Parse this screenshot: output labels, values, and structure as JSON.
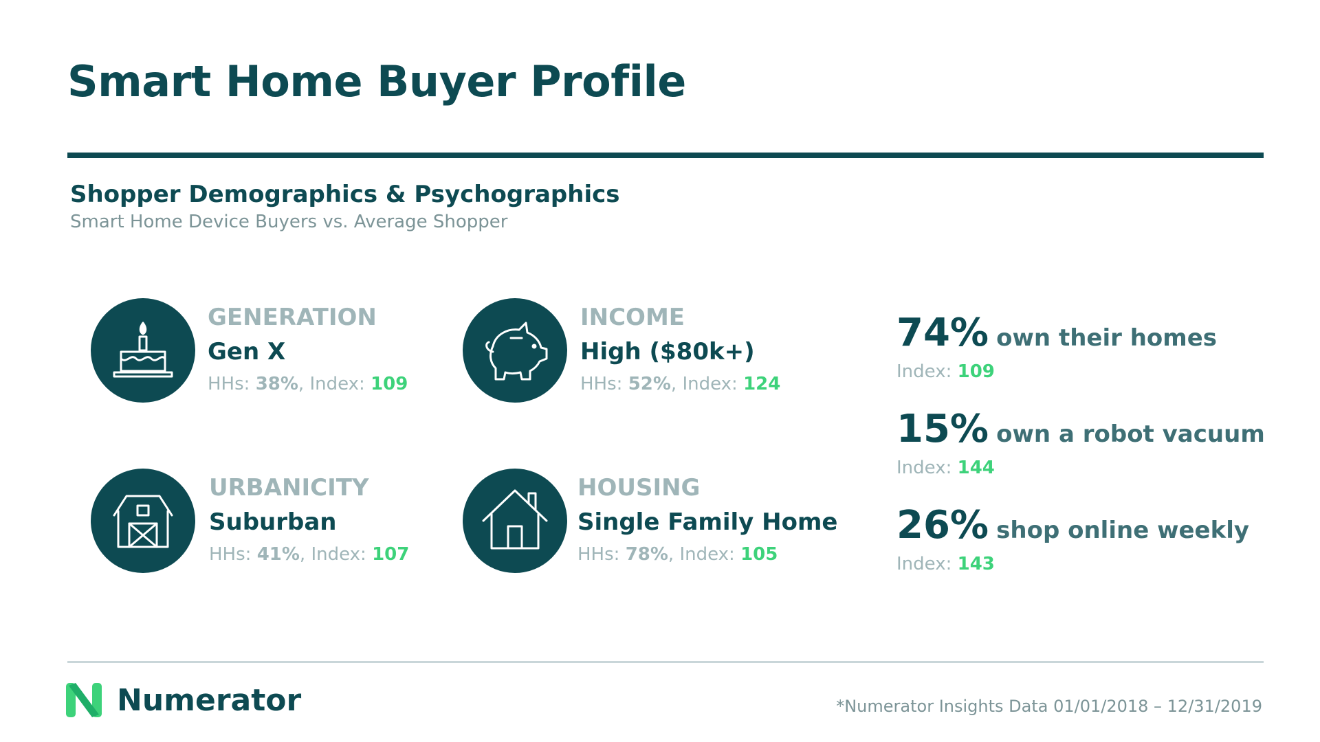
{
  "title": "Smart Home Buyer Profile",
  "section": {
    "title": "Shopper Demographics & Psychographics",
    "subtitle": "Smart Home Device Buyers vs. Average Shopper"
  },
  "cards": [
    {
      "label": "GENERATION",
      "value": "Gen X",
      "hhs_label": "HHs:",
      "hhs": "38%",
      "index_label": "Index:",
      "index": "109",
      "icon": "birthday-cake-icon"
    },
    {
      "label": "INCOME",
      "value": "High ($80k+)",
      "hhs_label": "HHs:",
      "hhs": "52%",
      "index_label": "Index:",
      "index": "124",
      "icon": "piggy-bank-icon"
    },
    {
      "label": "URBANICITY",
      "value": "Suburban",
      "hhs_label": "HHs:",
      "hhs": "41%",
      "index_label": "Index:",
      "index": "107",
      "icon": "barn-icon"
    },
    {
      "label": "HOUSING",
      "value": "Single Family Home",
      "hhs_label": "HHs:",
      "hhs": "78%",
      "index_label": "Index:",
      "index": "105",
      "icon": "house-icon"
    }
  ],
  "stats": [
    {
      "pct": "74%",
      "desc": "own their homes",
      "index_label": "Index:",
      "index": "109"
    },
    {
      "pct": "15%",
      "desc": "own a robot vacuum",
      "index_label": "Index:",
      "index": "144"
    },
    {
      "pct": "26%",
      "desc": "shop online weekly",
      "index_label": "Index:",
      "index": "143"
    }
  ],
  "footer": {
    "brand": "Numerator",
    "note": "*Numerator Insights Data 01/01/2018 – 12/31/2019",
    "logo_icon": "numerator-n-logo-icon"
  },
  "colors": {
    "primary": "#0d4a52",
    "label_grey": "#9fb5b8",
    "accent_green": "#3dd27a"
  }
}
